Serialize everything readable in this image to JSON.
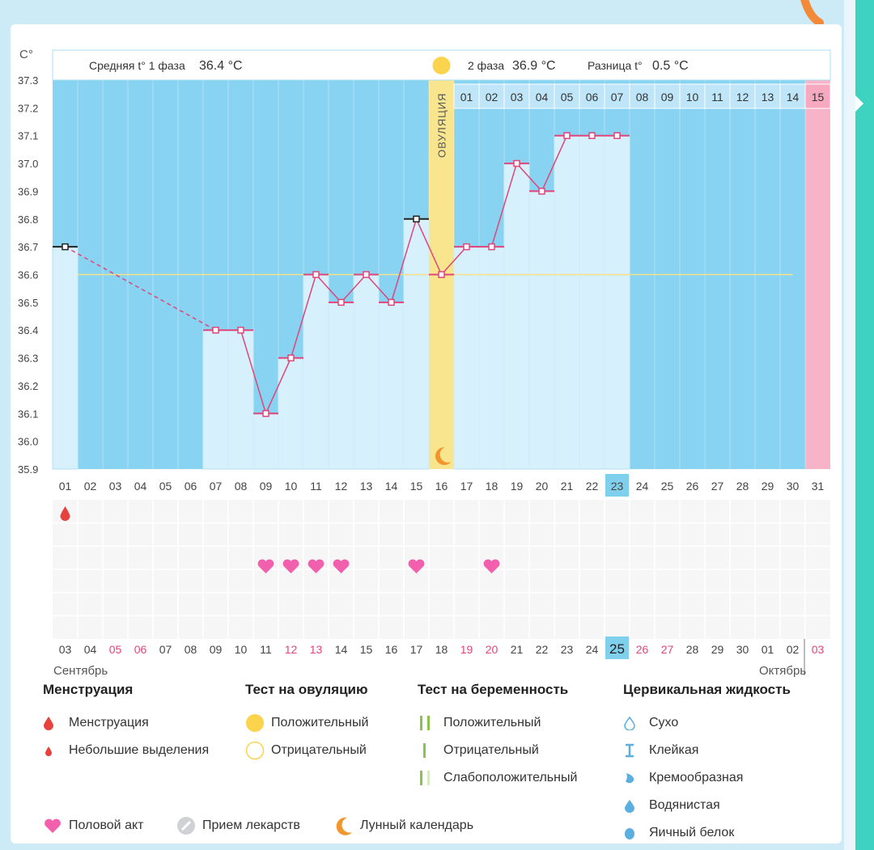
{
  "unit_label": "C°",
  "header": {
    "phase1_label": "Средняя t° 1 фаза",
    "phase1_value": "36.4 °C",
    "phase2_label": "2 фаза",
    "phase2_value": "36.9 °C",
    "diff_label": "Разница t°",
    "diff_value": "0.5 °C"
  },
  "ovulation_label": "ОВУЛЯЦИЯ",
  "cycle_days_top": [
    "01",
    "02",
    "03",
    "04",
    "05",
    "06",
    "07",
    "08",
    "09",
    "10",
    "11",
    "12",
    "13",
    "14",
    "15"
  ],
  "chart_data": {
    "type": "line",
    "ylim": [
      35.9,
      37.3
    ],
    "y_ticks": [
      "37.3",
      "37.2",
      "37.1",
      "37.0",
      "36.9",
      "36.8",
      "36.7",
      "36.6",
      "36.5",
      "36.4",
      "36.3",
      "36.2",
      "36.1",
      "36.0",
      "35.9"
    ],
    "x_cycle_days": [
      "01",
      "02",
      "03",
      "04",
      "05",
      "06",
      "07",
      "08",
      "09",
      "10",
      "11",
      "12",
      "13",
      "14",
      "15",
      "16",
      "17",
      "18",
      "19",
      "20",
      "21",
      "22",
      "23",
      "24",
      "25",
      "26",
      "27",
      "28",
      "29",
      "30",
      "31"
    ],
    "highlight_cycle_day": "23",
    "ovulation_day": 16,
    "coverline": 36.6,
    "points": [
      {
        "day": 1,
        "temp": 36.7,
        "marker": "dark"
      },
      {
        "day": 7,
        "temp": 36.4,
        "marker": "pink"
      },
      {
        "day": 8,
        "temp": 36.4,
        "marker": "pink"
      },
      {
        "day": 9,
        "temp": 36.1,
        "marker": "pink"
      },
      {
        "day": 10,
        "temp": 36.3,
        "marker": "pink"
      },
      {
        "day": 11,
        "temp": 36.6,
        "marker": "pink"
      },
      {
        "day": 12,
        "temp": 36.5,
        "marker": "pink"
      },
      {
        "day": 13,
        "temp": 36.6,
        "marker": "pink"
      },
      {
        "day": 14,
        "temp": 36.5,
        "marker": "pink"
      },
      {
        "day": 15,
        "temp": 36.8,
        "marker": "dark"
      },
      {
        "day": 16,
        "temp": 36.6,
        "marker": "pink"
      },
      {
        "day": 17,
        "temp": 36.7,
        "marker": "pink"
      },
      {
        "day": 18,
        "temp": 36.7,
        "marker": "pink"
      },
      {
        "day": 19,
        "temp": 37.0,
        "marker": "pink"
      },
      {
        "day": 20,
        "temp": 36.9,
        "marker": "pink"
      },
      {
        "day": 21,
        "temp": 37.1,
        "marker": "pink"
      },
      {
        "day": 22,
        "temp": 37.1,
        "marker": "pink"
      },
      {
        "day": 23,
        "temp": 37.1,
        "marker": "pink"
      }
    ],
    "period_end_day": 31,
    "menstruation_days": [
      1
    ],
    "intercourse_days": [
      9,
      10,
      11,
      12,
      15,
      18
    ],
    "dates": [
      {
        "d": "03",
        "red": false
      },
      {
        "d": "04",
        "red": false
      },
      {
        "d": "05",
        "red": true
      },
      {
        "d": "06",
        "red": true
      },
      {
        "d": "07",
        "red": false
      },
      {
        "d": "08",
        "red": false
      },
      {
        "d": "09",
        "red": false
      },
      {
        "d": "10",
        "red": false
      },
      {
        "d": "11",
        "red": false
      },
      {
        "d": "12",
        "red": true
      },
      {
        "d": "13",
        "red": true
      },
      {
        "d": "14",
        "red": false
      },
      {
        "d": "15",
        "red": false
      },
      {
        "d": "16",
        "red": false
      },
      {
        "d": "17",
        "red": false
      },
      {
        "d": "18",
        "red": false
      },
      {
        "d": "19",
        "red": true
      },
      {
        "d": "20",
        "red": true
      },
      {
        "d": "21",
        "red": false
      },
      {
        "d": "22",
        "red": false
      },
      {
        "d": "23",
        "red": false
      },
      {
        "d": "24",
        "red": false
      },
      {
        "d": "25",
        "red": false
      },
      {
        "d": "26",
        "red": true
      },
      {
        "d": "27",
        "red": true
      },
      {
        "d": "28",
        "red": false
      },
      {
        "d": "29",
        "red": false
      },
      {
        "d": "30",
        "red": false
      },
      {
        "d": "01",
        "red": false
      },
      {
        "d": "02",
        "red": false
      },
      {
        "d": "03",
        "red": true
      }
    ],
    "highlight_date": "25",
    "month_left": "Сентябрь",
    "month_right": "Октябрь"
  },
  "legend": {
    "menstruation": {
      "title": "Менструация",
      "items": [
        "Менструация",
        "Небольшие выделения"
      ]
    },
    "ovulation_test": {
      "title": "Тест на овуляцию",
      "items": [
        "Положительный",
        "Отрицательный"
      ]
    },
    "pregnancy_test": {
      "title": "Тест на беременность",
      "items": [
        "Положительный",
        "Отрицательный",
        "Слабоположительный"
      ]
    },
    "cervical": {
      "title": "Цервикальная жидкость",
      "items": [
        "Сухо",
        "Клейкая",
        "Кремообразная",
        "Водянистая",
        "Яичный белок"
      ]
    },
    "bottom": [
      "Половой акт",
      "Прием лекарств",
      "Лунный календарь"
    ]
  },
  "colors": {
    "plot_bg": "#87d3f1",
    "bar": "#d6f0fc",
    "line": "#e0457b",
    "ovulation": "#fae58f",
    "period": "#f7b3c7",
    "accent": "#7fd0ec",
    "heart": "#f25fac",
    "drop": "#e8423f",
    "teal": "#3ed3c0"
  }
}
